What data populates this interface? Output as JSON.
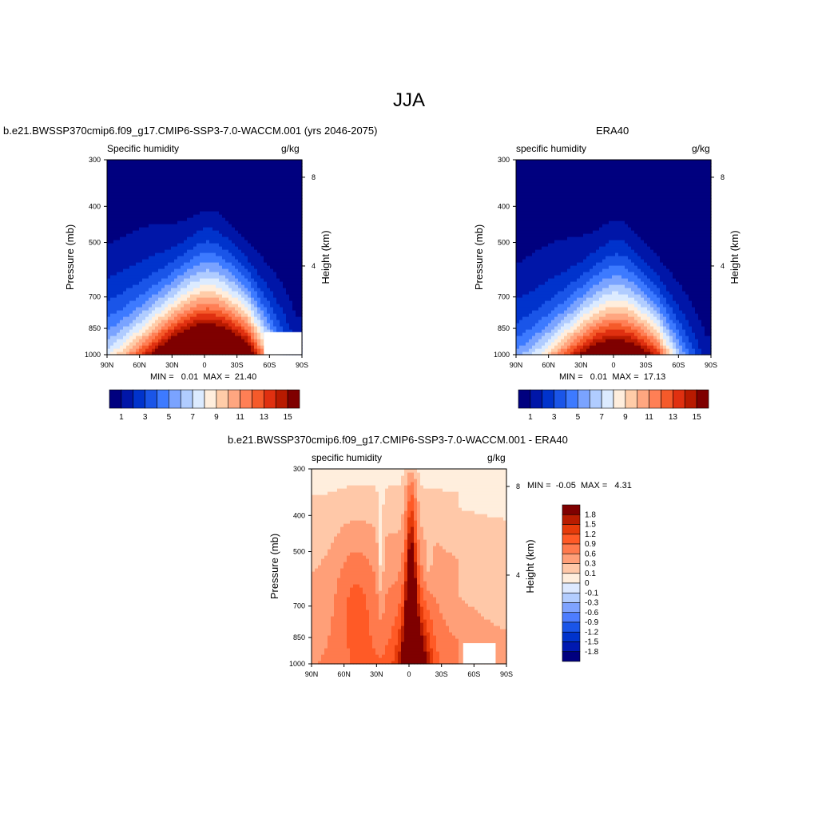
{
  "page": {
    "title": "JJA"
  },
  "palettes": {
    "absolute": [
      "#00007f",
      "#0016a8",
      "#0033cc",
      "#1a55e8",
      "#3d7aff",
      "#7aa3ff",
      "#b0ccff",
      "#dcebff",
      "#ffeedd",
      "#ffcca8",
      "#ffa680",
      "#ff7f55",
      "#f55a2a",
      "#e03010",
      "#b81a00",
      "#7f0000"
    ],
    "diff": [
      "#00007f",
      "#0019b0",
      "#0033cc",
      "#1a55e8",
      "#4d7dff",
      "#7fa3ff",
      "#b3cdff",
      "#dde9ff",
      "#ffeedd",
      "#ffc8a8",
      "#ff9f78",
      "#ff7a4d",
      "#ff5a26",
      "#e63b0a",
      "#b81c00",
      "#7f0000"
    ]
  },
  "charts": {
    "model": {
      "panel_title": "b.e21.BWSSP370cmip6.f09_g17.CMIP6-SSP3-7.0-WACCM.001 (yrs 2046-2075)",
      "var_label": "Specific humidity",
      "units": "g/kg",
      "stats": "MIN =   0.01  MAX =  21.40"
    },
    "obs": {
      "panel_title": "ERA40",
      "var_label": "specific humidity",
      "units": "g/kg",
      "stats": "MIN =   0.01  MAX =  17.13"
    },
    "diff": {
      "panel_title": "b.e21.BWSSP370cmip6.f09_g17.CMIP6-SSP3-7.0-WACCM.001 - ERA40",
      "var_label": "specific humidity",
      "units": "g/kg",
      "stats": "MIN =  -0.05  MAX =   4.31"
    }
  },
  "chart_data": [
    {
      "type": "heatmap",
      "id": "model",
      "subtype": "filled-contour",
      "title": "b.e21.BWSSP370cmip6.f09_g17.CMIP6-SSP3-7.0-WACCM.001 (yrs 2046-2075)",
      "variable": "Specific humidity",
      "units": "g/kg",
      "xlabel": "",
      "ylabel": "Pressure (mb)",
      "y2label": "Height (km)",
      "x_ticks": [
        "90N",
        "60N",
        "30N",
        "0",
        "30S",
        "60S",
        "90S"
      ],
      "x_range": [
        90,
        -90
      ],
      "y_ticks": [
        300,
        400,
        500,
        700,
        850,
        1000
      ],
      "y_range": [
        1000,
        300
      ],
      "y_scale": "log",
      "y2_ticks": [
        4,
        8
      ],
      "colorbar_labels": [
        "1",
        "3",
        "5",
        "7",
        "9",
        "11",
        "13",
        "15"
      ],
      "contour_levels": [
        1,
        2,
        3,
        4,
        5,
        6,
        7,
        8,
        9,
        10,
        11,
        12,
        13,
        14,
        15
      ],
      "min": 0.01,
      "max": 21.4,
      "missing_region": {
        "lat_range": [
          -55,
          -90
        ],
        "p_range": [
          1000,
          870
        ]
      }
    },
    {
      "type": "heatmap",
      "id": "obs",
      "subtype": "filled-contour",
      "title": "ERA40",
      "variable": "specific humidity",
      "units": "g/kg",
      "xlabel": "",
      "ylabel": "Pressure (mb)",
      "y2label": "Height (km)",
      "x_ticks": [
        "90N",
        "60N",
        "30N",
        "0",
        "30S",
        "60S",
        "90S"
      ],
      "x_range": [
        90,
        -90
      ],
      "y_ticks": [
        300,
        400,
        500,
        700,
        850,
        1000
      ],
      "y_range": [
        1000,
        300
      ],
      "y_scale": "log",
      "y2_ticks": [
        4,
        8
      ],
      "colorbar_labels": [
        "1",
        "3",
        "5",
        "7",
        "9",
        "11",
        "13",
        "15"
      ],
      "contour_levels": [
        1,
        2,
        3,
        4,
        5,
        6,
        7,
        8,
        9,
        10,
        11,
        12,
        13,
        14,
        15
      ],
      "min": 0.01,
      "max": 17.13
    },
    {
      "type": "heatmap",
      "id": "diff",
      "subtype": "filled-contour",
      "title": "b.e21.BWSSP370cmip6.f09_g17.CMIP6-SSP3-7.0-WACCM.001 - ERA40",
      "variable": "specific humidity",
      "units": "g/kg",
      "xlabel": "",
      "ylabel": "Pressure (mb)",
      "y2label": "Height (km)",
      "x_ticks": [
        "90N",
        "60N",
        "30N",
        "0",
        "30S",
        "60S",
        "90S"
      ],
      "x_range": [
        90,
        -90
      ],
      "y_ticks": [
        300,
        400,
        500,
        700,
        850,
        1000
      ],
      "y_range": [
        1000,
        300
      ],
      "y_scale": "log",
      "y2_ticks": [
        4,
        8
      ],
      "colorbar_labels": [
        "1.8",
        "1.5",
        "1.2",
        "0.9",
        "0.6",
        "0.3",
        "0.1",
        "0",
        "-0.1",
        "-0.3",
        "-0.6",
        "-0.9",
        "-1.2",
        "-1.5",
        "-1.8"
      ],
      "contour_levels": [
        -1.8,
        -1.5,
        -1.2,
        -0.9,
        -0.6,
        -0.3,
        -0.1,
        0,
        0.1,
        0.3,
        0.6,
        0.9,
        1.2,
        1.5,
        1.8
      ],
      "min": -0.05,
      "max": 4.31,
      "missing_region": {
        "lat_range": [
          -50,
          -80
        ],
        "p_range": [
          1000,
          880
        ]
      }
    }
  ]
}
